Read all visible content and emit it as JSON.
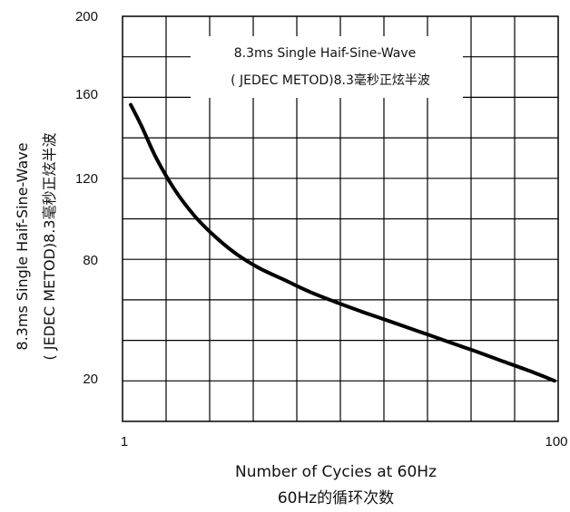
{
  "chart_data": {
    "type": "line",
    "xlabel_line1": "Number of Cycies at 60Hz",
    "xlabel_line2": "60Hz的循环次数",
    "ylabel_line1": "8.3ms Single Haif-Sine-Wave",
    "ylabel_line2": "( JEDEC METOD)8.3毫秒正炫半波",
    "legend_line1": "8.3ms Single Haif-Sine-Wave",
    "legend_line2": "( JEDEC METOD)8.3毫秒正炫半波",
    "legend_placement": "top-right",
    "x_scale": "log",
    "xlim": [
      1,
      100
    ],
    "x_tick_labels": [
      {
        "value": 1,
        "label": "1"
      },
      {
        "value": 100,
        "label": "100"
      }
    ],
    "y_tick_labels": [
      {
        "value": 200,
        "label": "200"
      },
      {
        "value": 160,
        "label": "160"
      },
      {
        "value": 120,
        "label": "120"
      },
      {
        "value": 80,
        "label": "80"
      },
      {
        "value": 20,
        "label": "20"
      }
    ],
    "grid": true,
    "series": [
      {
        "color": "#000000",
        "points": [
          {
            "x": 1.07,
            "y": 155
          },
          {
            "x": 1.2,
            "y": 145
          },
          {
            "x": 1.4,
            "y": 130
          },
          {
            "x": 1.7,
            "y": 115
          },
          {
            "x": 2.1,
            "y": 102
          },
          {
            "x": 2.6,
            "y": 92
          },
          {
            "x": 3.3,
            "y": 83
          },
          {
            "x": 4.2,
            "y": 76
          },
          {
            "x": 5.5,
            "y": 70
          },
          {
            "x": 7.2,
            "y": 64
          },
          {
            "x": 9.4,
            "y": 59
          },
          {
            "x": 12.5,
            "y": 54
          },
          {
            "x": 17,
            "y": 49
          },
          {
            "x": 23,
            "y": 44
          },
          {
            "x": 31,
            "y": 39
          },
          {
            "x": 42,
            "y": 34
          },
          {
            "x": 56,
            "y": 29
          },
          {
            "x": 75,
            "y": 24
          },
          {
            "x": 98,
            "y": 19
          }
        ]
      }
    ]
  }
}
